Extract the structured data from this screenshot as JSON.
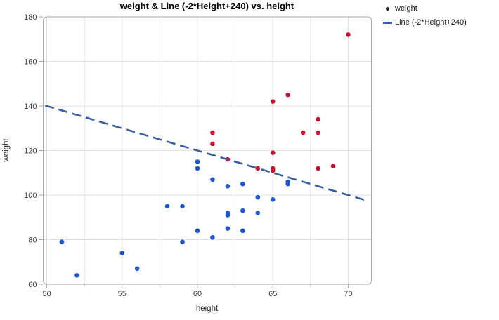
{
  "title": "weight & Line (-2*Height+240) vs. height",
  "x_axis": {
    "label": "height",
    "ticks": [
      50,
      55,
      60,
      65,
      70
    ],
    "minor_ticks": [
      52.5,
      57.5,
      62.5,
      67.5
    ],
    "range": [
      49.8,
      71.5
    ]
  },
  "y_axis": {
    "label": "weight",
    "ticks": [
      60,
      80,
      100,
      120,
      140,
      160,
      180
    ],
    "range": [
      60,
      180
    ]
  },
  "legend": {
    "items": [
      {
        "label": "weight",
        "marker": "dot",
        "color": "#1a1a1a"
      },
      {
        "label": "Line (-2*Height+240)",
        "marker": "dash",
        "color": "#3a5f9e"
      }
    ]
  },
  "colors": {
    "point_blue": "#1e56cc",
    "point_red": "#c51230",
    "trend_line": "#3a5f9e",
    "gridline": "#e0e0e0",
    "frame_border": "#a9a9a9",
    "tick_label": "#3d3d3d",
    "axis_label": "#222222",
    "title": "#000000"
  },
  "chart_data": {
    "type": "scatter",
    "title": "weight & Line (-2*Height+240) vs. height",
    "xlabel": "height",
    "ylabel": "weight",
    "xlim": [
      49.8,
      71.5
    ],
    "ylim": [
      60,
      180
    ],
    "grid": "vertical gridlines every 2.5 from 50 to 70, horizontal gridlines every 20 from 80 to 160",
    "legend_position": "top-right outside plot",
    "series": [
      {
        "name": "weight (blue points, below line)",
        "type": "scatter",
        "color": "#1e56cc",
        "points": [
          [
            51,
            79
          ],
          [
            52,
            64
          ],
          [
            55,
            74
          ],
          [
            56,
            67
          ],
          [
            58,
            95
          ],
          [
            59,
            79
          ],
          [
            59,
            95
          ],
          [
            60,
            84
          ],
          [
            60,
            112
          ],
          [
            60,
            115
          ],
          [
            61,
            81
          ],
          [
            61,
            107
          ],
          [
            62,
            85
          ],
          [
            62,
            91
          ],
          [
            62,
            92
          ],
          [
            62,
            104
          ],
          [
            63,
            84
          ],
          [
            63,
            93
          ],
          [
            63,
            105
          ],
          [
            64,
            92
          ],
          [
            64,
            99
          ],
          [
            65,
            98
          ],
          [
            66,
            105
          ],
          [
            66,
            106
          ]
        ]
      },
      {
        "name": "weight (red points, on/above line)",
        "type": "scatter",
        "color": "#c51230",
        "points": [
          [
            61,
            123
          ],
          [
            61,
            128
          ],
          [
            62,
            116
          ],
          [
            64,
            112
          ],
          [
            65,
            111
          ],
          [
            65,
            112
          ],
          [
            65,
            119
          ],
          [
            65,
            142
          ],
          [
            66,
            145
          ],
          [
            67,
            128
          ],
          [
            68,
            112
          ],
          [
            68,
            128
          ],
          [
            68,
            134
          ],
          [
            69,
            113
          ],
          [
            70,
            172
          ]
        ]
      },
      {
        "name": "Line (-2*Height+240)",
        "type": "line",
        "style": "dashed",
        "color": "#3a5f9e",
        "equation": "weight = -2*height + 240",
        "x_start": 49.9,
        "x_end": 71.3,
        "y_start": 140.2,
        "y_end": 97.4
      }
    ]
  }
}
